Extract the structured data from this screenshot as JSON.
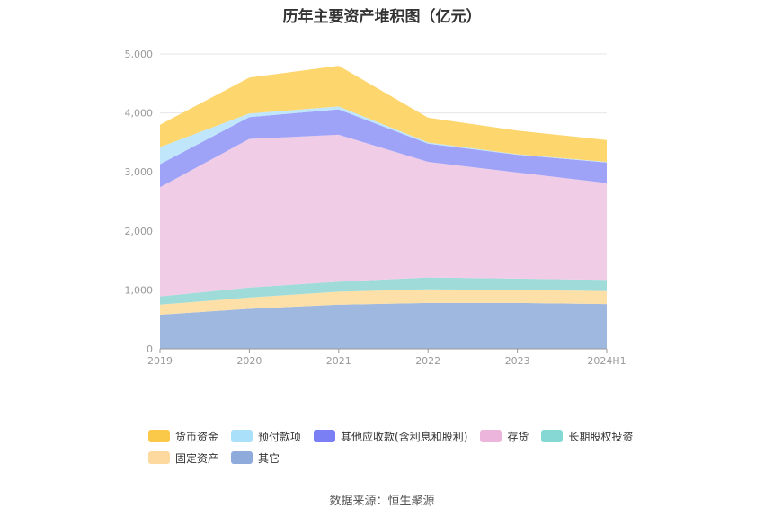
{
  "title": "历年主要资产堆积图（亿元）",
  "source": "数据来源：恒生聚源",
  "chart_data": {
    "type": "area",
    "stacked": true,
    "title": "历年主要资产堆积图（亿元）",
    "categories": [
      "2019",
      "2020",
      "2021",
      "2022",
      "2023",
      "2024H1"
    ],
    "ylim": [
      0,
      5000
    ],
    "yticks": [
      "0",
      "1,000",
      "2,000",
      "3,000",
      "4,000",
      "5,000"
    ],
    "grid": true,
    "legend_position": "bottom",
    "series": [
      {
        "name": "其它",
        "color": "#9fb8df",
        "values": [
          580,
          680,
          750,
          780,
          780,
          760
        ]
      },
      {
        "name": "固定资产",
        "color": "#fde0a8",
        "values": [
          170,
          190,
          220,
          230,
          220,
          220
        ]
      },
      {
        "name": "长期股权投资",
        "color": "#9fdcd9",
        "values": [
          140,
          170,
          170,
          200,
          190,
          190
        ]
      },
      {
        "name": "存货",
        "color": "#f0cce6",
        "values": [
          1850,
          2520,
          2490,
          1960,
          1800,
          1640
        ]
      },
      {
        "name": "其他应收款(含利息和股利)",
        "color": "#9ea3f8",
        "values": [
          390,
          370,
          430,
          310,
          300,
          350
        ]
      },
      {
        "name": "预付款项",
        "color": "#bfe6fb",
        "values": [
          290,
          60,
          50,
          20,
          10,
          10
        ]
      },
      {
        "name": "货币资金",
        "color": "#fdd66e",
        "values": [
          380,
          610,
          690,
          420,
          400,
          370
        ]
      }
    ],
    "legend": [
      {
        "name": "货币资金",
        "color": "#fbc94a"
      },
      {
        "name": "预付款项",
        "color": "#abe0fb"
      },
      {
        "name": "其他应收款(含利息和股利)",
        "color": "#7b7ff4"
      },
      {
        "name": "存货",
        "color": "#ecb5dc"
      },
      {
        "name": "长期股权投资",
        "color": "#86d8d4"
      },
      {
        "name": "固定资产",
        "color": "#fdd9a0"
      },
      {
        "name": "其它",
        "color": "#8fabdb"
      }
    ]
  }
}
